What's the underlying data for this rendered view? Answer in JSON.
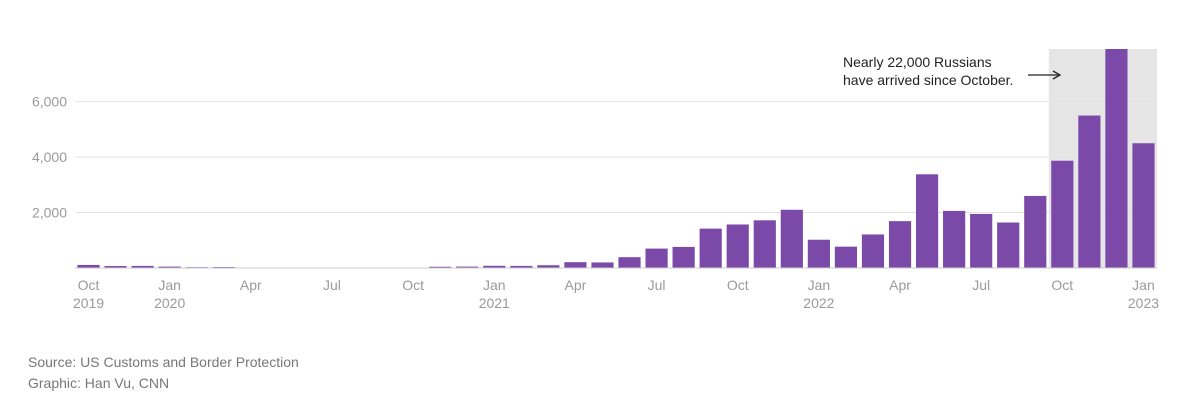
{
  "chart_data": {
    "type": "bar",
    "categories": [
      "2019-10",
      "2019-11",
      "2019-12",
      "2020-01",
      "2020-02",
      "2020-03",
      "2020-04",
      "2020-05",
      "2020-06",
      "2020-07",
      "2020-08",
      "2020-09",
      "2020-10",
      "2020-11",
      "2020-12",
      "2021-01",
      "2021-02",
      "2021-03",
      "2021-04",
      "2021-05",
      "2021-06",
      "2021-07",
      "2021-08",
      "2021-09",
      "2021-10",
      "2021-11",
      "2021-12",
      "2022-01",
      "2022-02",
      "2022-03",
      "2022-04",
      "2022-05",
      "2022-06",
      "2022-07",
      "2022-08",
      "2022-09",
      "2022-10",
      "2022-11",
      "2022-12",
      "2023-01"
    ],
    "values": [
      110,
      70,
      75,
      50,
      30,
      35,
      10,
      5,
      5,
      10,
      15,
      10,
      10,
      45,
      50,
      80,
      75,
      100,
      210,
      200,
      390,
      700,
      760,
      1420,
      1570,
      1720,
      2100,
      1020,
      770,
      1210,
      1690,
      3380,
      2060,
      1950,
      1640,
      2600,
      3870,
      5500,
      7900,
      4500
    ],
    "ylim": [
      0,
      7900
    ],
    "y_ticks": [
      {
        "value": 2000,
        "label": "2,000"
      },
      {
        "value": 4000,
        "label": "4,000"
      },
      {
        "value": 6000,
        "label": "6,000"
      }
    ],
    "x_ticks": [
      {
        "index": 0,
        "label": "Oct",
        "sublabel": "2019"
      },
      {
        "index": 3,
        "label": "Jan",
        "sublabel": "2020"
      },
      {
        "index": 6,
        "label": "Apr",
        "sublabel": ""
      },
      {
        "index": 9,
        "label": "Jul",
        "sublabel": ""
      },
      {
        "index": 12,
        "label": "Oct",
        "sublabel": ""
      },
      {
        "index": 15,
        "label": "Jan",
        "sublabel": "2021"
      },
      {
        "index": 18,
        "label": "Apr",
        "sublabel": ""
      },
      {
        "index": 21,
        "label": "Jul",
        "sublabel": ""
      },
      {
        "index": 24,
        "label": "Oct",
        "sublabel": ""
      },
      {
        "index": 27,
        "label": "Jan",
        "sublabel": "2022"
      },
      {
        "index": 30,
        "label": "Apr",
        "sublabel": ""
      },
      {
        "index": 33,
        "label": "Jul",
        "sublabel": ""
      },
      {
        "index": 36,
        "label": "Oct",
        "sublabel": ""
      },
      {
        "index": 39,
        "label": "Jan",
        "sublabel": "2023"
      }
    ],
    "highlight_range": [
      "2022-10",
      "2023-01"
    ],
    "grid": true,
    "colors": {
      "bar": "#7b4aa8",
      "highlight": "#e6e6e6",
      "grid": "#e3e3e3",
      "axis": "#cccccc",
      "tick_text": "#9a9a9a"
    },
    "annotation": {
      "text": "Nearly 22,000 Russians have arrived since October."
    }
  },
  "footer": {
    "source": "Source: US Customs and Border Protection",
    "credit": "Graphic: Han Vu, CNN"
  }
}
